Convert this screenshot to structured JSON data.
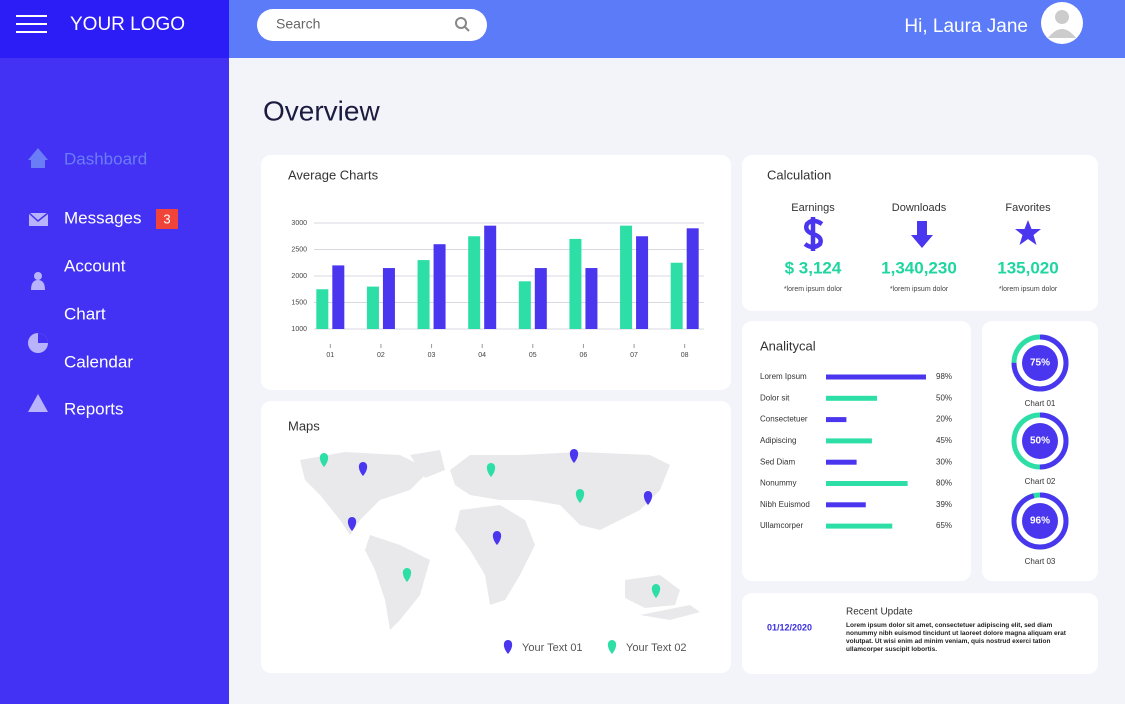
{
  "header": {
    "logo": "YOUR LOGO",
    "search_placeholder": "Search",
    "greeting": "Hi, Laura Jane"
  },
  "sidebar": {
    "items": [
      "Dashboard",
      "Messages",
      "Account",
      "Chart",
      "Calendar",
      "Reports"
    ],
    "messages_badge": 3
  },
  "page_title": "Overview",
  "average_chart": {
    "type": "bar",
    "title": "Average Charts",
    "categories": [
      "01",
      "02",
      "03",
      "04",
      "05",
      "06",
      "07",
      "08"
    ],
    "series": [
      {
        "color": "#2ddfa6",
        "values": [
          1750,
          1800,
          2300,
          2750,
          1900,
          2700,
          2950,
          2250
        ]
      },
      {
        "color": "#4a36ee",
        "values": [
          2200,
          2150,
          2600,
          2950,
          2150,
          2150,
          2750,
          2900
        ]
      }
    ],
    "ylim": [
      1000,
      3000
    ],
    "yticks": [
      1000,
      1500,
      2000,
      2500,
      3000
    ],
    "grid": true
  },
  "calculation": {
    "title": "Calculation",
    "items": [
      {
        "label": "Earnings",
        "value": "$ 3,124",
        "note": "*lorem ipsum dolor"
      },
      {
        "label": "Downloads",
        "value": "1,340,230",
        "note": "*lorem ipsum dolor"
      },
      {
        "label": "Favorites",
        "value": "135,020",
        "note": "*lorem ipsum dolor"
      }
    ]
  },
  "analytical": {
    "type": "bar",
    "title": "Analitycal",
    "xlim": [
      0,
      100
    ],
    "rows": [
      {
        "label": "Lorem Ipsum",
        "value": 98,
        "value_label": "98%",
        "color": "#4a36ee"
      },
      {
        "label": "Dolor sit",
        "value": 50,
        "value_label": "50%",
        "color": "#2ddfa6"
      },
      {
        "label": "Consectetuer",
        "value": 20,
        "value_label": "20%",
        "color": "#4a36ee"
      },
      {
        "label": "Adipiscing",
        "value": 45,
        "value_label": "45%",
        "color": "#2ddfa6"
      },
      {
        "label": "Sed Diam",
        "value": 30,
        "value_label": "30%",
        "color": "#4a36ee"
      },
      {
        "label": "Nonummy",
        "value": 80,
        "value_label": "80%",
        "color": "#2ddfa6"
      },
      {
        "label": "Nibh Euismod",
        "value": 39,
        "value_label": "39%",
        "color": "#4a36ee"
      },
      {
        "label": "Ullamcorper",
        "value": 65,
        "value_label": "65%",
        "color": "#2ddfa6"
      }
    ]
  },
  "donuts": {
    "type": "pie",
    "items": [
      {
        "name": "Chart 01",
        "value": 75,
        "value_label": "75%"
      },
      {
        "name": "Chart 02",
        "value": 50,
        "value_label": "50%"
      },
      {
        "name": "Chart 03",
        "value": 96,
        "value_label": "96%"
      }
    ]
  },
  "maps": {
    "title": "Maps",
    "legend": [
      "Your Text 01",
      "Your Text 02"
    ]
  },
  "recent_update": {
    "date": "01/12/2020",
    "title": "Recent Update",
    "text": "Lorem ipsum dolor sit amet, consectetuer adipiscing elit, sed diam nonummy nibh euismod tincidunt ut laoreet dolore magna aliquam erat volutpat. Ut wisi enim ad minim veniam, quis nostrud exerci tation ullamcorper suscipit lobortis."
  }
}
